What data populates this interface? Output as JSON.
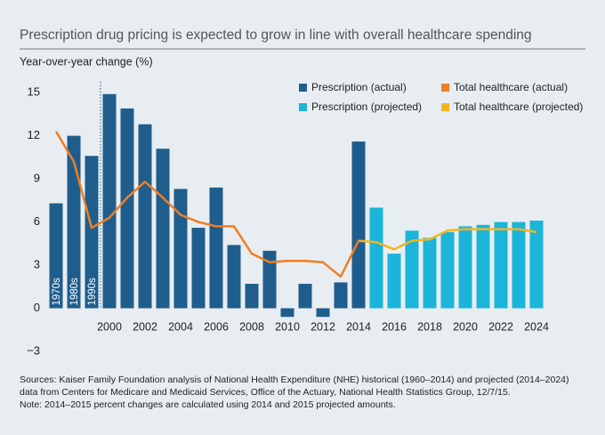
{
  "chart_data": {
    "type": "bar",
    "title": "Prescription drug pricing is expected to grow in line with overall healthcare spending",
    "y_label": "Year-over-year change (%)",
    "categories": [
      "1970s",
      "1980s",
      "1990s",
      "2000",
      null,
      "2002",
      null,
      "2004",
      null,
      "2006",
      null,
      "2008",
      null,
      "2010",
      null,
      "2012",
      null,
      "2014",
      null,
      "2016",
      null,
      "2018",
      null,
      "2020",
      null,
      "2022",
      null,
      "2024"
    ],
    "series": [
      {
        "name": "Prescription (actual)",
        "type": "bar",
        "color": "#1f5d8c",
        "values": [
          7.3,
          12.0,
          10.6,
          14.9,
          13.9,
          12.8,
          11.1,
          8.3,
          5.6,
          8.4,
          4.4,
          1.7,
          4.0,
          -0.6,
          1.7,
          -0.6,
          1.8,
          11.6,
          null,
          null,
          null,
          null,
          null,
          null,
          null,
          null,
          null,
          null
        ]
      },
      {
        "name": "Prescription (projected)",
        "type": "bar",
        "color": "#1bb5d9",
        "values": [
          null,
          null,
          null,
          null,
          null,
          null,
          null,
          null,
          null,
          null,
          null,
          null,
          null,
          null,
          null,
          null,
          null,
          null,
          7.0,
          3.8,
          5.4,
          4.9,
          5.3,
          5.7,
          5.8,
          6.0,
          6.0,
          6.1
        ]
      },
      {
        "name": "Total healthcare (actual)",
        "type": "line",
        "color": "#f07e22",
        "values": [
          12.3,
          10.2,
          5.6,
          6.3,
          7.7,
          8.8,
          7.7,
          6.5,
          6.0,
          5.7,
          5.7,
          3.8,
          3.2,
          3.3,
          3.3,
          3.2,
          2.2,
          4.7,
          null,
          null,
          null,
          null,
          null,
          null,
          null,
          null,
          null,
          null
        ]
      },
      {
        "name": "Total healthcare (projected)",
        "type": "line",
        "color": "#f5b41f",
        "values": [
          null,
          null,
          null,
          null,
          null,
          null,
          null,
          null,
          null,
          null,
          null,
          null,
          null,
          null,
          null,
          null,
          null,
          4.7,
          4.6,
          4.1,
          4.7,
          4.8,
          5.4,
          5.5,
          5.5,
          5.5,
          5.5,
          5.3
        ]
      }
    ],
    "ylim": [
      -3,
      16
    ],
    "yticks": [
      {
        "value": -3,
        "label": "−3"
      },
      0,
      3,
      6,
      9,
      12,
      15
    ],
    "sources": "Sources: Kaiser Family Foundation analysis of National Health Expenditure (NHE) historical (1960–2014) and projected (2014–2024) data from Centers for Medicare and Medicaid Services, Office of the Actuary, National Health Statistics Group, 12/7/15.",
    "note": "Note: 2014–2015 percent changes are calculated using 2014 and 2015 projected amounts."
  }
}
